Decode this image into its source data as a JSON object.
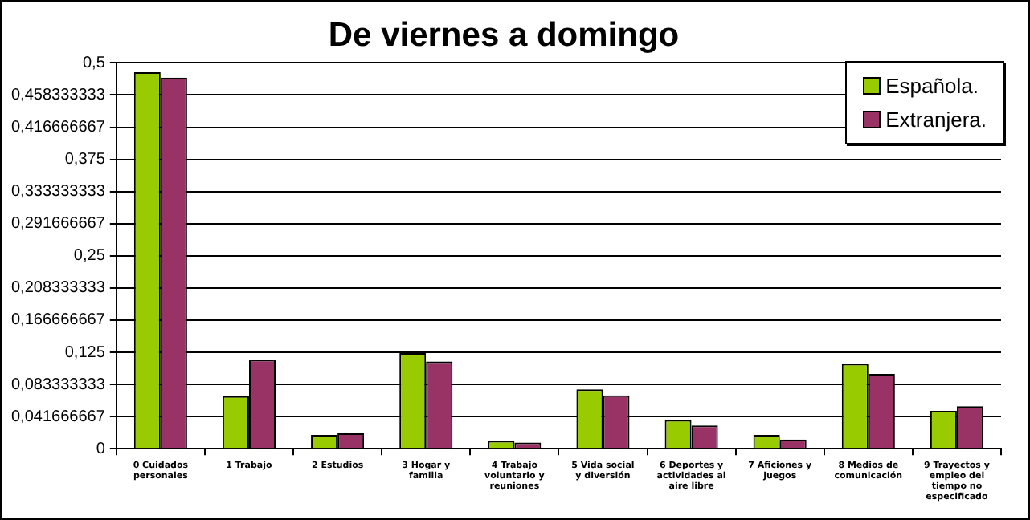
{
  "chart_data": {
    "type": "bar",
    "title": "De viernes a domingo",
    "categories": [
      "0 Cuidados personales",
      "1 Trabajo",
      "2 Estudios",
      "3 Hogar y familia",
      "4 Trabajo voluntario y reuniones",
      "5 Vida social y diversión",
      "6 Deportes y actividades al aire libre",
      "7 Aficiones y juegos",
      "8 Medios de comunicación",
      "9 Trayectos y empleo del tiempo no especificado"
    ],
    "series": [
      {
        "name": "Española.",
        "color": "#99cc00",
        "values": [
          0.488,
          0.068,
          0.018,
          0.124,
          0.01,
          0.077,
          0.037,
          0.018,
          0.11,
          0.049
        ]
      },
      {
        "name": "Extranjera.",
        "color": "#993366",
        "values": [
          0.481,
          0.115,
          0.02,
          0.113,
          0.008,
          0.069,
          0.03,
          0.012,
          0.097,
          0.055
        ]
      }
    ],
    "ylim": [
      0,
      0.5
    ],
    "yticks": [
      {
        "value": 0,
        "label": "0"
      },
      {
        "value": 0.041666667,
        "label": "0,041666667"
      },
      {
        "value": 0.083333333,
        "label": "0,083333333"
      },
      {
        "value": 0.125,
        "label": "0,125"
      },
      {
        "value": 0.166666667,
        "label": "0,166666667"
      },
      {
        "value": 0.208333333,
        "label": "0,208333333"
      },
      {
        "value": 0.25,
        "label": "0,25"
      },
      {
        "value": 0.291666667,
        "label": "0,291666667"
      },
      {
        "value": 0.333333333,
        "label": "0,333333333"
      },
      {
        "value": 0.375,
        "label": "0,375"
      },
      {
        "value": 0.416666667,
        "label": "0,416666667"
      },
      {
        "value": 0.458333333,
        "label": "0,458333333"
      },
      {
        "value": 0.5,
        "label": "0,5"
      }
    ],
    "grid": "y",
    "legend": "top right"
  }
}
